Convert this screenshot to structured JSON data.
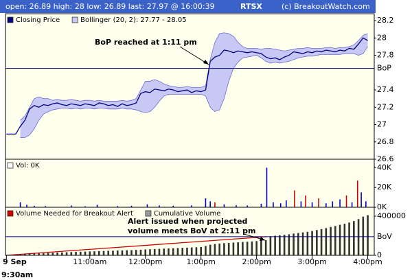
{
  "header": {
    "quote": "open: 26.89 high: 28 low: 26.89 last: 27.97 @ 16:00:39",
    "symbol": "RTSX",
    "copyright": "(c) BreakoutWatch.com"
  },
  "chart_data": [
    {
      "type": "line",
      "x": [
        570,
        575,
        580,
        585,
        590,
        595,
        600,
        605,
        610,
        615,
        620,
        625,
        630,
        635,
        640,
        645,
        650,
        655,
        660,
        665,
        670,
        675,
        680,
        685,
        690,
        695,
        700,
        705,
        710,
        715,
        720,
        725,
        730,
        735,
        740,
        745,
        750,
        755,
        760,
        765,
        770,
        775,
        780,
        785,
        790,
        795,
        800,
        805,
        810,
        815,
        820,
        825,
        830,
        835,
        840,
        845,
        850,
        855,
        860,
        865,
        870,
        875,
        880,
        885,
        890,
        895,
        900,
        905,
        910,
        915,
        920,
        925,
        930,
        935,
        940,
        945,
        950,
        955,
        960
      ],
      "series": [
        {
          "name": "Bollinger (20, 2): 27.77 - 28.05",
          "type": "band",
          "color": "#c8c8f4",
          "line_color": "#6b6bd0",
          "upper": [
            null,
            null,
            null,
            27.05,
            27.1,
            27.2,
            27.3,
            27.32,
            27.3,
            27.3,
            27.28,
            27.29,
            27.28,
            27.28,
            27.29,
            27.28,
            27.27,
            27.28,
            27.28,
            27.27,
            27.28,
            27.27,
            27.27,
            27.27,
            27.27,
            27.28,
            27.27,
            27.28,
            27.3,
            27.4,
            27.5,
            27.5,
            27.52,
            27.5,
            27.47,
            27.45,
            27.44,
            27.43,
            27.43,
            27.44,
            27.43,
            27.43,
            27.43,
            27.45,
            27.75,
            27.95,
            28.05,
            28.06,
            28.05,
            28.02,
            27.95,
            27.9,
            27.88,
            27.88,
            27.88,
            27.87,
            27.88,
            27.88,
            27.87,
            27.86,
            27.85,
            27.86,
            27.87,
            27.88,
            27.88,
            27.89,
            27.88,
            27.88,
            27.88,
            27.89,
            27.89,
            27.88,
            27.89,
            27.89,
            27.9,
            27.92,
            27.97,
            28.03,
            28.05
          ],
          "lower": [
            null,
            null,
            null,
            26.85,
            26.85,
            26.88,
            26.95,
            27.05,
            27.12,
            27.15,
            27.17,
            27.18,
            27.19,
            27.19,
            27.18,
            27.19,
            27.18,
            27.19,
            27.19,
            27.18,
            27.19,
            27.19,
            27.18,
            27.18,
            27.18,
            27.19,
            27.18,
            27.18,
            27.17,
            27.15,
            27.14,
            27.15,
            27.2,
            27.27,
            27.33,
            27.35,
            27.35,
            27.35,
            27.35,
            27.35,
            27.35,
            27.35,
            27.35,
            27.33,
            27.2,
            27.15,
            27.17,
            27.3,
            27.5,
            27.65,
            27.72,
            27.77,
            27.78,
            27.79,
            27.8,
            27.77,
            27.73,
            27.71,
            27.72,
            27.71,
            27.72,
            27.73,
            27.75,
            27.77,
            27.78,
            27.79,
            27.79,
            27.8,
            27.81,
            27.81,
            27.81,
            27.81,
            27.81,
            27.82,
            27.82,
            27.82,
            27.8,
            27.82,
            27.9
          ]
        },
        {
          "name": "Closing Price",
          "type": "line",
          "color": "#000080",
          "values": [
            26.89,
            26.89,
            26.89,
            26.98,
            27.05,
            27.18,
            27.22,
            27.2,
            27.23,
            27.22,
            27.24,
            27.25,
            27.23,
            27.22,
            27.24,
            27.23,
            27.22,
            27.24,
            27.23,
            27.22,
            27.25,
            27.24,
            27.22,
            27.23,
            27.21,
            27.24,
            27.22,
            27.23,
            27.25,
            27.36,
            27.38,
            27.37,
            27.41,
            27.4,
            27.39,
            27.41,
            27.4,
            27.38,
            27.39,
            27.4,
            27.37,
            27.39,
            27.38,
            27.4,
            27.73,
            27.78,
            27.8,
            27.86,
            27.85,
            27.83,
            27.85,
            27.84,
            27.83,
            27.84,
            27.83,
            27.82,
            27.78,
            27.76,
            27.77,
            27.75,
            27.78,
            27.8,
            27.84,
            27.83,
            27.82,
            27.84,
            27.83,
            27.85,
            27.84,
            27.86,
            27.85,
            27.84,
            27.86,
            27.85,
            27.88,
            27.87,
            27.93,
            28.0,
            27.97
          ]
        }
      ],
      "ylim": [
        26.6,
        28.28
      ],
      "yticks": [
        26.6,
        26.8,
        27,
        27.2,
        27.4,
        27.8,
        28,
        28.2
      ],
      "reference_line": {
        "value": 27.65,
        "label": "BoP",
        "color": "#000080"
      },
      "annotation": {
        "lines": [
          "BoP reached at 1:11 pm"
        ]
      }
    },
    {
      "type": "bar",
      "series": [
        {
          "name": "Vol: 0K",
          "type": "bar",
          "color": "#ffffff",
          "x": [
            585,
            592,
            600,
            612,
            640,
            655,
            668,
            690,
            705,
            722,
            735,
            750,
            770,
            785,
            790,
            795,
            805,
            818,
            830,
            845,
            851,
            858,
            866,
            872,
            881,
            888,
            893,
            900,
            907,
            915,
            922,
            930,
            937,
            943,
            949,
            953,
            958
          ],
          "values": [
            5000,
            2500,
            1500,
            1200,
            1800,
            1000,
            2500,
            1200,
            1500,
            3000,
            1800,
            1500,
            2000,
            9000,
            6000,
            5000,
            3000,
            2000,
            1800,
            3500,
            40000,
            5000,
            4000,
            7000,
            17000,
            6000,
            12000,
            5000,
            9000,
            4000,
            6000,
            8000,
            12000,
            5000,
            27000,
            15000,
            6000
          ],
          "colors": [
            "#0000cc",
            "#0000cc",
            "#0000cc",
            "#0000cc",
            "#0000cc",
            "#0000cc",
            "#0000cc",
            "#0000cc",
            "#0000cc",
            "#0000cc",
            "#0000cc",
            "#0000cc",
            "#0000cc",
            "#0000cc",
            "#0000cc",
            "#cc0000",
            "#0000cc",
            "#0000cc",
            "#0000cc",
            "#0000cc",
            "#0000cc",
            "#0000cc",
            "#0000cc",
            "#0000cc",
            "#cc0000",
            "#0000cc",
            "#cc0000",
            "#0000cc",
            "#cc0000",
            "#0000cc",
            "#0000cc",
            "#0000cc",
            "#cc0000",
            "#0000cc",
            "#cc0000",
            "#0000cc",
            "#0000cc"
          ]
        }
      ],
      "ylim": [
        0,
        48600
      ],
      "yticks": [
        {
          "value": 0,
          "label": "0K"
        },
        {
          "value": 20000,
          "label": "20K"
        },
        {
          "value": 40000,
          "label": "40K"
        }
      ]
    },
    {
      "type": "bar",
      "series": [
        {
          "name": "Volume Needed for Breakout Alert",
          "type": "line",
          "color": "#cc0000",
          "x": [
            570,
            851
          ],
          "values": [
            0,
            190000
          ]
        },
        {
          "name": "Cumulative Volume",
          "type": "bar",
          "color": "#333333",
          "legend_color": "#999999",
          "x": [
            570,
            575,
            580,
            585,
            590,
            595,
            600,
            605,
            610,
            615,
            620,
            625,
            630,
            635,
            640,
            645,
            650,
            655,
            660,
            665,
            670,
            675,
            680,
            685,
            690,
            695,
            700,
            705,
            710,
            715,
            720,
            725,
            730,
            735,
            740,
            745,
            750,
            755,
            760,
            765,
            770,
            775,
            780,
            785,
            790,
            795,
            800,
            805,
            810,
            815,
            820,
            825,
            830,
            835,
            840,
            845,
            850,
            855,
            860,
            865,
            870,
            875,
            880,
            885,
            890,
            895,
            900,
            905,
            910,
            915,
            920,
            925,
            930,
            935,
            940,
            945,
            950,
            955,
            960
          ],
          "values": [
            2000,
            4000,
            5000,
            10000,
            14000,
            16000,
            18000,
            20000,
            22000,
            24000,
            26000,
            28000,
            30000,
            31000,
            33000,
            35000,
            36000,
            38000,
            40000,
            41000,
            43000,
            44000,
            46000,
            47000,
            49000,
            50000,
            52000,
            53000,
            55000,
            57000,
            60000,
            62000,
            64000,
            66000,
            68000,
            70000,
            72000,
            74000,
            76000,
            78000,
            80000,
            82000,
            85000,
            95000,
            108000,
            115000,
            120000,
            124000,
            127000,
            130000,
            133000,
            136000,
            139000,
            142000,
            145000,
            150000,
            155000,
            195000,
            200000,
            205000,
            210000,
            215000,
            222000,
            228000,
            234000,
            240000,
            248000,
            258000,
            268000,
            278000,
            290000,
            300000,
            312000,
            322000,
            335000,
            350000,
            370000,
            395000,
            410000
          ]
        }
      ],
      "ylim": [
        0,
        491000
      ],
      "yticks": [
        0,
        400000
      ],
      "reference_line": {
        "value": 190000,
        "label": "BoV",
        "color": "#000080"
      },
      "annotation": {
        "lines": [
          "Alert issued when projected",
          "volume meets BoV at 2:11 pm"
        ]
      },
      "xlim": [
        569,
        967
      ],
      "xticks": [
        {
          "value": 570,
          "label": "9:30am"
        },
        {
          "value": 660,
          "label": "11:00am"
        },
        {
          "value": 720,
          "label": "12:00pm"
        },
        {
          "value": 780,
          "label": "1:00pm"
        },
        {
          "value": 840,
          "label": "2:00pm"
        },
        {
          "value": 900,
          "label": "3:00pm"
        },
        {
          "value": 960,
          "label": "4:00pm"
        }
      ],
      "date_label": "9 Sep"
    }
  ]
}
